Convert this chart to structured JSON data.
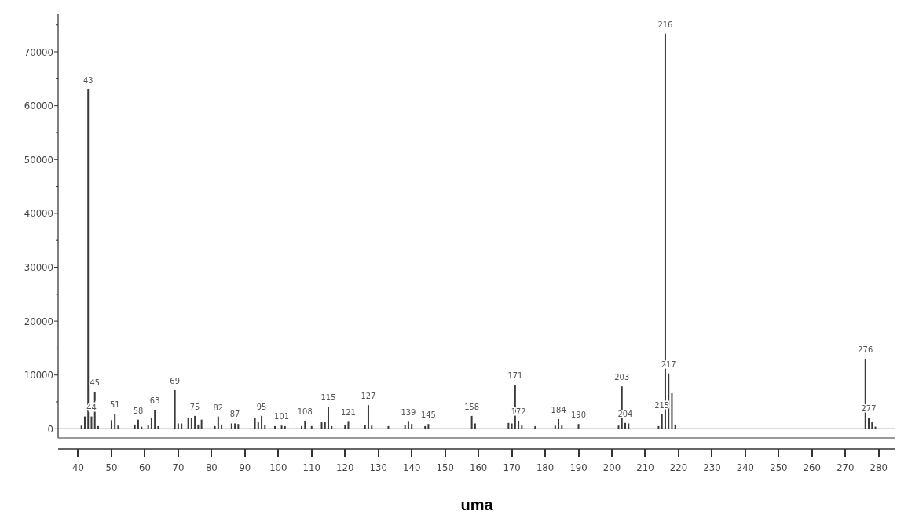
{
  "chart_data": {
    "type": "bar",
    "xlabel": "uma",
    "color": "#3a3a3a",
    "grid": false,
    "x": [
      41,
      42,
      43,
      44,
      45,
      46,
      50,
      51,
      52,
      57,
      58,
      59,
      61,
      62,
      63,
      64,
      69,
      70,
      71,
      73,
      74,
      75,
      76,
      77,
      81,
      82,
      83,
      86,
      87,
      88,
      93,
      94,
      95,
      96,
      99,
      101,
      102,
      107,
      108,
      110,
      113,
      114,
      115,
      116,
      120,
      121,
      126,
      127,
      128,
      133,
      138,
      139,
      140,
      144,
      145,
      158,
      159,
      169,
      170,
      171,
      172,
      173,
      177,
      183,
      184,
      185,
      190,
      202,
      203,
      204,
      205,
      214,
      215,
      216,
      217,
      218,
      219,
      276,
      277,
      278,
      279
    ],
    "values": [
      600,
      2300,
      63000,
      2300,
      6900,
      500,
      1600,
      2800,
      600,
      800,
      1700,
      400,
      700,
      2100,
      3500,
      500,
      7200,
      1000,
      1000,
      2000,
      2000,
      2400,
      800,
      1700,
      500,
      2300,
      800,
      1000,
      1000,
      900,
      2000,
      1200,
      2400,
      700,
      500,
      600,
      500,
      500,
      1500,
      500,
      1200,
      1200,
      4100,
      500,
      700,
      1300,
      700,
      4400,
      600,
      500,
      700,
      1300,
      900,
      500,
      900,
      2400,
      1000,
      1100,
      1000,
      8200,
      1500,
      600,
      500,
      600,
      1800,
      600,
      900,
      600,
      7900,
      1100,
      1000,
      500,
      2700,
      73400,
      10300,
      6600,
      800,
      13000,
      2100,
      1200,
      400
    ],
    "annotations": [
      {
        "text": "43",
        "x": 43,
        "y": 63000
      },
      {
        "text": "44",
        "x": 44,
        "y": 2300
      },
      {
        "text": "45",
        "x": 45,
        "y": 6900
      },
      {
        "text": "51",
        "x": 51,
        "y": 2800
      },
      {
        "text": "58",
        "x": 58,
        "y": 1700
      },
      {
        "text": "63",
        "x": 63,
        "y": 3500
      },
      {
        "text": "69",
        "x": 69,
        "y": 7200
      },
      {
        "text": "75",
        "x": 75,
        "y": 2400
      },
      {
        "text": "82",
        "x": 82,
        "y": 2300
      },
      {
        "text": "87",
        "x": 87,
        "y": 1000
      },
      {
        "text": "95",
        "x": 95,
        "y": 2400
      },
      {
        "text": "101",
        "x": 101,
        "y": 600
      },
      {
        "text": "108",
        "x": 108,
        "y": 1500
      },
      {
        "text": "115",
        "x": 115,
        "y": 4100
      },
      {
        "text": "121",
        "x": 121,
        "y": 1300
      },
      {
        "text": "127",
        "x": 127,
        "y": 4400
      },
      {
        "text": "139",
        "x": 139,
        "y": 1300
      },
      {
        "text": "145",
        "x": 145,
        "y": 900
      },
      {
        "text": "158",
        "x": 158,
        "y": 2400
      },
      {
        "text": "171",
        "x": 171,
        "y": 8200
      },
      {
        "text": "172",
        "x": 172,
        "y": 1500
      },
      {
        "text": "184",
        "x": 184,
        "y": 1800
      },
      {
        "text": "190",
        "x": 190,
        "y": 900
      },
      {
        "text": "203",
        "x": 203,
        "y": 7900
      },
      {
        "text": "204",
        "x": 204,
        "y": 1100
      },
      {
        "text": "215",
        "x": 215,
        "y": 2700
      },
      {
        "text": "216",
        "x": 216,
        "y": 73400
      },
      {
        "text": "217",
        "x": 217,
        "y": 10300
      },
      {
        "text": "276",
        "x": 276,
        "y": 13000
      },
      {
        "text": "277",
        "x": 277,
        "y": 2100
      }
    ],
    "xlim": [
      34,
      285
    ],
    "xticks": [
      40,
      50,
      60,
      70,
      80,
      90,
      100,
      110,
      120,
      130,
      140,
      150,
      160,
      170,
      180,
      190,
      200,
      210,
      220,
      230,
      240,
      250,
      260,
      270,
      280
    ],
    "ref_lines": [
      {
        "axis": "y",
        "value": 0,
        "color": "#333333"
      }
    ],
    "ylim": [
      -1700,
      77000
    ],
    "yticks": [
      0,
      {
        "value": 5000,
        "label": null
      },
      10000,
      {
        "value": 15000,
        "label": null
      },
      20000,
      {
        "value": 25000,
        "label": null
      },
      30000,
      {
        "value": 35000,
        "label": null
      },
      40000,
      {
        "value": 45000,
        "label": null
      },
      50000,
      {
        "value": 55000,
        "label": null
      },
      60000,
      {
        "value": 65000,
        "label": null
      },
      70000,
      {
        "value": 75000,
        "label": null
      }
    ]
  }
}
